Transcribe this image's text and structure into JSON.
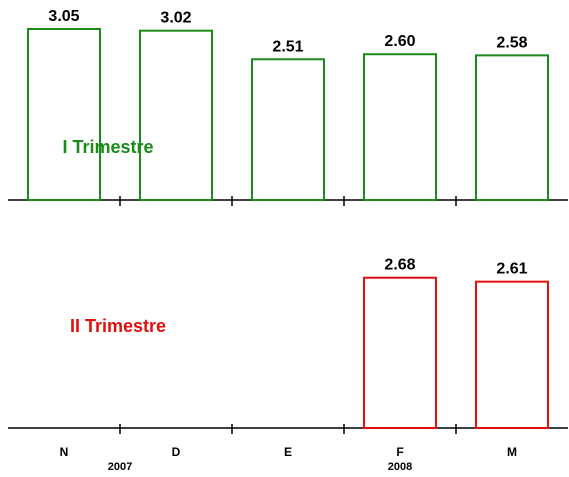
{
  "chart_data": {
    "type": "bar",
    "categories": [
      "N",
      "D",
      "E",
      "F",
      "M"
    ],
    "year_labels": [
      {
        "text": "2007",
        "after_category": 0
      },
      {
        "text": "2008",
        "category": 3
      }
    ],
    "panels": [
      {
        "label": "I Trimestre",
        "color": "#1a8a1a",
        "values": [
          3.05,
          3.02,
          2.51,
          2.6,
          2.58
        ],
        "value_labels": [
          "3.05",
          "3.02",
          "2.51",
          "2.60",
          "2.58"
        ]
      },
      {
        "label": "II Trimestre",
        "color": "#e01010",
        "values": [
          null,
          null,
          null,
          2.68,
          2.61
        ],
        "value_labels": [
          "",
          "",
          "",
          "2.68",
          "2.61"
        ]
      }
    ],
    "ylim": [
      0,
      3.05
    ]
  }
}
